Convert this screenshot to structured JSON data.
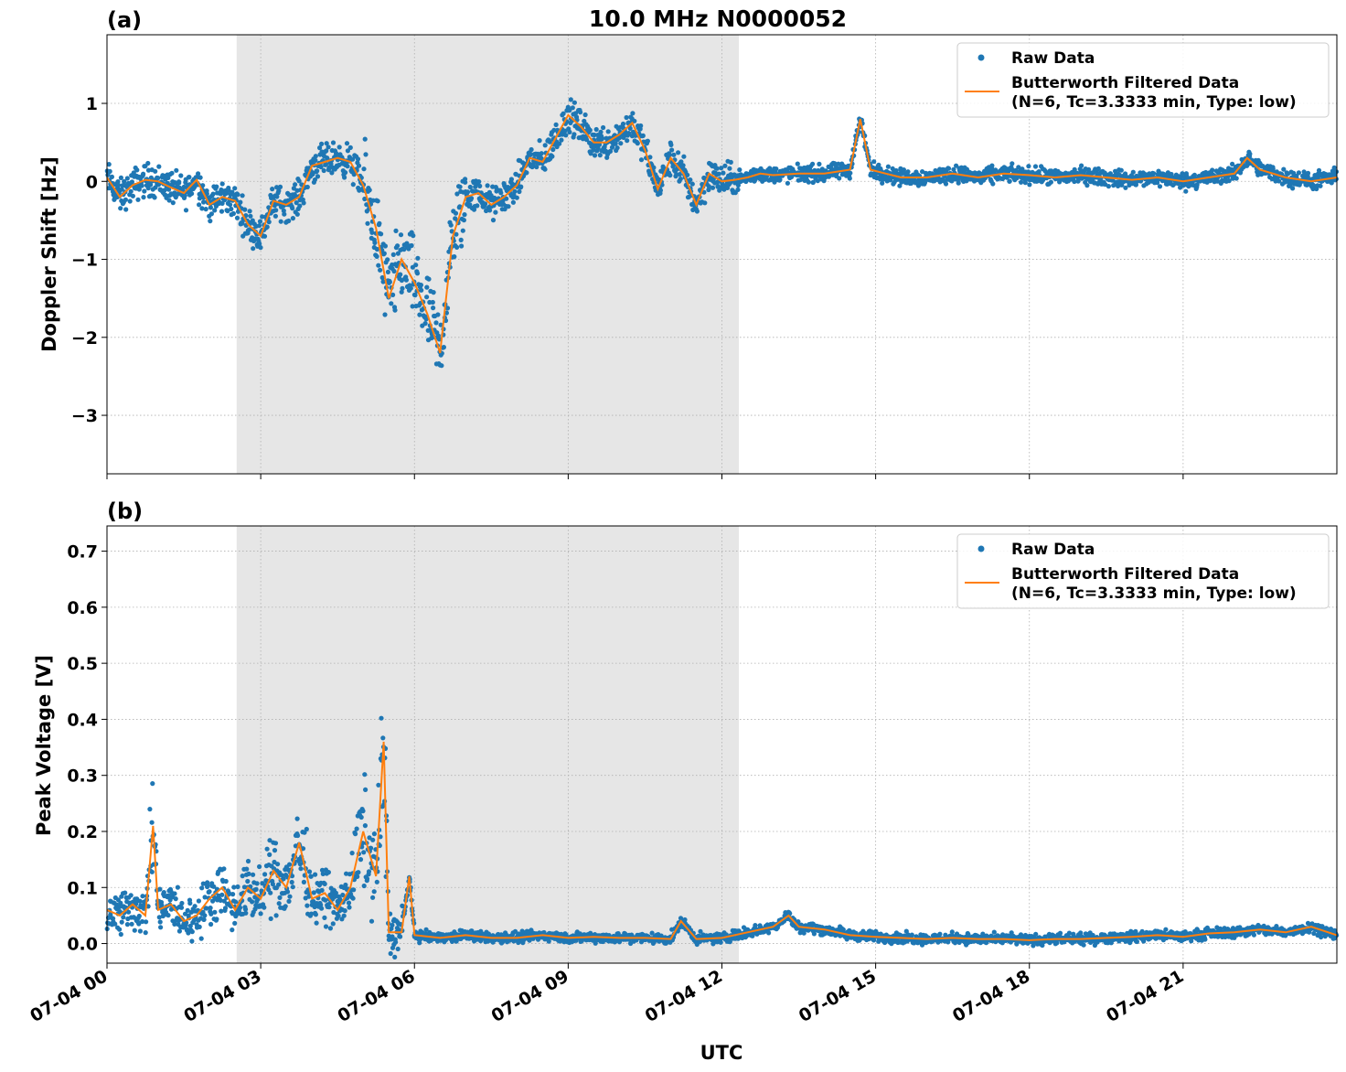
{
  "figure_title": "10.0 MHz N0000052",
  "x_axis": {
    "label": "UTC",
    "ticks": [
      "07-04 00",
      "07-04 03",
      "07-04 06",
      "07-04 09",
      "07-04 12",
      "07-04 15",
      "07-04 18",
      "07-04 21"
    ],
    "tick_hours": [
      0,
      3,
      6,
      9,
      12,
      15,
      18,
      21
    ],
    "range_hours": [
      0,
      24
    ]
  },
  "legend": {
    "raw": "Raw Data",
    "filtered_line1": "Butterworth Filtered Data",
    "filtered_line2": "(N=6, Tc=3.3333 min, Type: low)"
  },
  "colors": {
    "raw": "#1f77b4",
    "filtered": "#ff7f0e",
    "shade": "#e6e6e6",
    "grid": "#b0b0b0"
  },
  "chart_data": [
    {
      "type": "scatter",
      "panel": "(a)",
      "ylabel": "Doppler Shift [Hz]",
      "ylim": [
        -3.75,
        1.88
      ],
      "yticks": [
        -3,
        -2,
        -1,
        0,
        1
      ],
      "ytick_labels": [
        "−3",
        "−2",
        "−1",
        "0",
        "1"
      ],
      "shaded_interval_hours": [
        2.53,
        12.33
      ],
      "grid": true,
      "legend_position": "top-right",
      "series": [
        {
          "name": "Butterworth Filtered Data",
          "kind": "line",
          "x": [
            0,
            0.25,
            0.5,
            0.75,
            1,
            1.25,
            1.5,
            1.75,
            2,
            2.25,
            2.5,
            2.75,
            3,
            3.25,
            3.5,
            3.75,
            4,
            4.25,
            4.5,
            4.75,
            5,
            5.25,
            5.5,
            5.75,
            6,
            6.25,
            6.5,
            6.75,
            7,
            7.25,
            7.5,
            7.75,
            8,
            8.25,
            8.5,
            8.75,
            9,
            9.25,
            9.5,
            9.75,
            10,
            10.25,
            10.5,
            10.75,
            11,
            11.25,
            11.5,
            11.75,
            12,
            12.25,
            12.5,
            12.75,
            13,
            13.5,
            14,
            14.5,
            14.7,
            14.9,
            15.2,
            15.5,
            16,
            16.5,
            17,
            17.5,
            18,
            18.5,
            19,
            19.5,
            20,
            20.5,
            21,
            21.5,
            22,
            22.25,
            22.5,
            23,
            23.5,
            24
          ],
          "y": [
            0.05,
            -0.2,
            -0.05,
            0.02,
            0.0,
            -0.08,
            -0.15,
            0.02,
            -0.3,
            -0.2,
            -0.25,
            -0.55,
            -0.7,
            -0.25,
            -0.3,
            -0.2,
            0.2,
            0.25,
            0.3,
            0.25,
            -0.05,
            -0.6,
            -1.5,
            -1.0,
            -1.3,
            -1.7,
            -2.2,
            -0.7,
            -0.2,
            -0.15,
            -0.3,
            -0.2,
            -0.05,
            0.3,
            0.25,
            0.55,
            0.85,
            0.7,
            0.5,
            0.5,
            0.6,
            0.75,
            0.4,
            -0.1,
            0.3,
            0.1,
            -0.3,
            0.1,
            0.0,
            0.02,
            0.05,
            0.1,
            0.08,
            0.1,
            0.1,
            0.15,
            0.8,
            0.15,
            0.1,
            0.05,
            0.05,
            0.1,
            0.05,
            0.1,
            0.08,
            0.05,
            0.08,
            0.05,
            0.02,
            0.05,
            0.0,
            0.05,
            0.1,
            0.3,
            0.15,
            0.05,
            0.0,
            0.05
          ]
        }
      ]
    },
    {
      "type": "scatter",
      "panel": "(b)",
      "ylabel": "Peak Voltage [V]",
      "ylim": [
        -0.035,
        0.745
      ],
      "yticks": [
        0.0,
        0.1,
        0.2,
        0.3,
        0.4,
        0.5,
        0.6,
        0.7
      ],
      "ytick_labels": [
        "0.0",
        "0.1",
        "0.2",
        "0.3",
        "0.4",
        "0.5",
        "0.6",
        "0.7"
      ],
      "shaded_interval_hours": [
        2.53,
        12.33
      ],
      "grid": true,
      "legend_position": "top-right",
      "series": [
        {
          "name": "Butterworth Filtered Data",
          "kind": "line",
          "x": [
            0,
            0.25,
            0.5,
            0.75,
            0.9,
            1.0,
            1.25,
            1.5,
            1.75,
            2,
            2.25,
            2.5,
            2.75,
            3,
            3.25,
            3.5,
            3.75,
            4,
            4.25,
            4.5,
            4.75,
            5,
            5.25,
            5.4,
            5.5,
            5.75,
            5.9,
            6,
            6.5,
            7,
            7.5,
            8,
            8.5,
            9,
            9.5,
            10,
            10.5,
            11,
            11.2,
            11.5,
            12,
            12.5,
            13,
            13.3,
            13.5,
            14,
            14.5,
            15,
            15.5,
            16,
            16.5,
            17,
            17.5,
            18,
            18.5,
            19,
            19.5,
            20,
            20.5,
            21,
            21.5,
            22,
            22.5,
            23,
            23.5,
            24
          ],
          "y": [
            0.06,
            0.05,
            0.07,
            0.05,
            0.21,
            0.06,
            0.07,
            0.04,
            0.05,
            0.08,
            0.1,
            0.06,
            0.1,
            0.08,
            0.13,
            0.1,
            0.18,
            0.08,
            0.09,
            0.06,
            0.1,
            0.2,
            0.12,
            0.36,
            0.02,
            0.02,
            0.12,
            0.015,
            0.01,
            0.015,
            0.01,
            0.01,
            0.015,
            0.01,
            0.012,
            0.01,
            0.01,
            0.008,
            0.04,
            0.008,
            0.01,
            0.02,
            0.03,
            0.05,
            0.03,
            0.025,
            0.015,
            0.012,
            0.01,
            0.008,
            0.01,
            0.008,
            0.008,
            0.006,
            0.008,
            0.008,
            0.01,
            0.012,
            0.015,
            0.012,
            0.018,
            0.02,
            0.025,
            0.02,
            0.03,
            0.015
          ]
        }
      ]
    }
  ]
}
